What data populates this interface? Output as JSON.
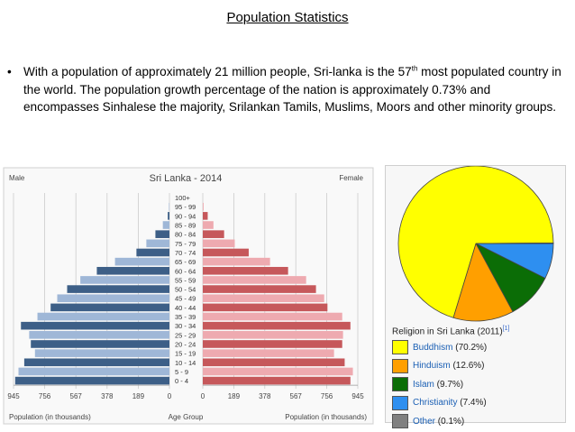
{
  "slide": {
    "title": "Population Statistics",
    "bullet_symbol": "•",
    "bullet_before": "With a population of approximately 21 million people, Sri-lanka is the 57",
    "bullet_sup": "th",
    "bullet_after": " most populated country in the world. The population growth percentage of the nation is approximately 0.73% and encompasses Sinhalese the majority, Srilankan Tamils, Muslims, Moors and other minority groups."
  },
  "chart_data": [
    {
      "type": "bar",
      "title": "Sri Lanka - 2014",
      "left_label": "Male",
      "right_label": "Female",
      "xlabel_left": "Population (in thousands)",
      "xlabel_center": "Age Group",
      "xlabel_right": "Population (in thousands)",
      "x_ticks": [
        "945",
        "756",
        "567",
        "378",
        "189",
        "0"
      ],
      "xlim": [
        0,
        945
      ],
      "categories": [
        "100+",
        "95 - 99",
        "90 - 94",
        "85 - 89",
        "80 - 84",
        "75 - 79",
        "70 - 74",
        "65 - 69",
        "60 - 64",
        "55 - 59",
        "50 - 54",
        "45 - 49",
        "40 - 44",
        "35 - 39",
        "30 - 34",
        "25 - 29",
        "20 - 24",
        "15 - 19",
        "10 - 14",
        "5 - 9",
        "0 - 4"
      ],
      "series": [
        {
          "name": "Male",
          "values": [
            0,
            3,
            10,
            40,
            85,
            140,
            200,
            330,
            440,
            540,
            620,
            680,
            720,
            800,
            900,
            850,
            840,
            815,
            880,
            915,
            935
          ]
        },
        {
          "name": "Female",
          "values": [
            0,
            5,
            30,
            65,
            130,
            195,
            280,
            410,
            520,
            630,
            690,
            740,
            760,
            850,
            900,
            855,
            850,
            800,
            865,
            915,
            900
          ]
        }
      ],
      "colors": {
        "male_dark": "#3d5f87",
        "male_light": "#9fb7d7",
        "female_dark": "#c6585b",
        "female_light": "#eeaab0"
      }
    },
    {
      "type": "pie",
      "caption": "Religion in Sri Lanka (2011)",
      "caption_ref": "[1]",
      "labels": [
        "Buddhism",
        "Hinduism",
        "Islam",
        "Christianity",
        "Other"
      ],
      "values": [
        70.2,
        12.6,
        9.7,
        7.4,
        0.1
      ],
      "value_labels": [
        "(70.2%)",
        "(12.6%)",
        "(9.7%)",
        "(7.4%)",
        "(0.1%)"
      ],
      "colors": [
        "#ffff00",
        "#ff9f00",
        "#0b6d06",
        "#2e8ff0",
        "#808080"
      ]
    }
  ]
}
